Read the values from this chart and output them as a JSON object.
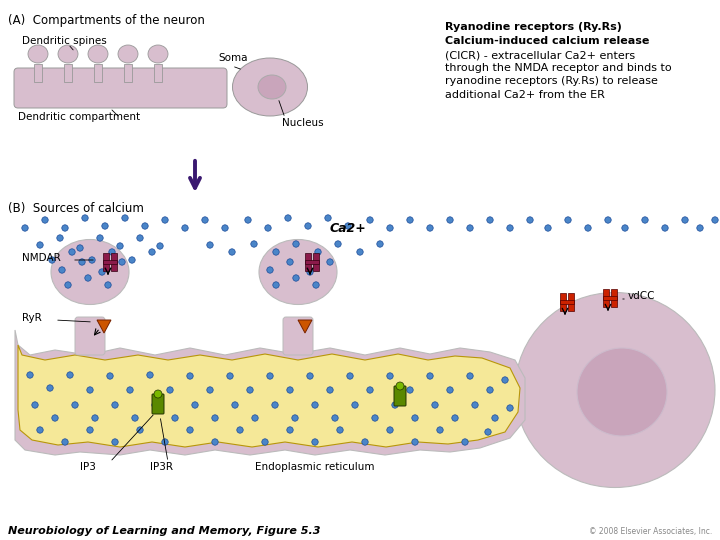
{
  "bg_color": "#ffffff",
  "footer_left": "Neurobiology of Learning and Memory, Figure 5.3",
  "footer_right": "© 2008 Elsevier Associates, Inc.",
  "label_A": "(A)  Compartments of the neuron",
  "label_B": "(B)  Sources of calcium",
  "label_dendritic_spines": "Dendritic spines",
  "label_soma": "Soma",
  "label_dendritic_compartment": "Dendritic compartment",
  "label_nucleus": "Nucleus",
  "label_NMDAR": "NMDAR",
  "label_RyR": "RyR",
  "label_IP3": "IP3",
  "label_IP3R": "IP3R",
  "label_vdCC": "vdCC",
  "label_ER": "Endoplasmic reticulum",
  "label_Ca2": "Ca2+",
  "spine_color": "#d8bece",
  "soma_color": "#d8bece",
  "nucleus_color": "#c9a5bb",
  "er_color": "#f5e898",
  "er_outline": "#b8960a",
  "ca_dot_color": "#4a85c8",
  "nmdar_color": "#8b1a4a",
  "ryR_color": "#cc5500",
  "ip3r_color": "#5a8800",
  "vdcc_color": "#cc2200",
  "arrow_color": "#3a1870",
  "title_line1": "Ryanodine receptors (Ry",
  "title_line1b": "Rs)",
  "title_line2": "Calcium-induced calcium release",
  "title_rest": "(CICR) - extracellular Ca2+ enters\nthrough the NMDA receptor and binds to\nryanodine receptors (Ry",
  "title_rest2": "Rs) to release\nadditional Ca2+ from the ER"
}
